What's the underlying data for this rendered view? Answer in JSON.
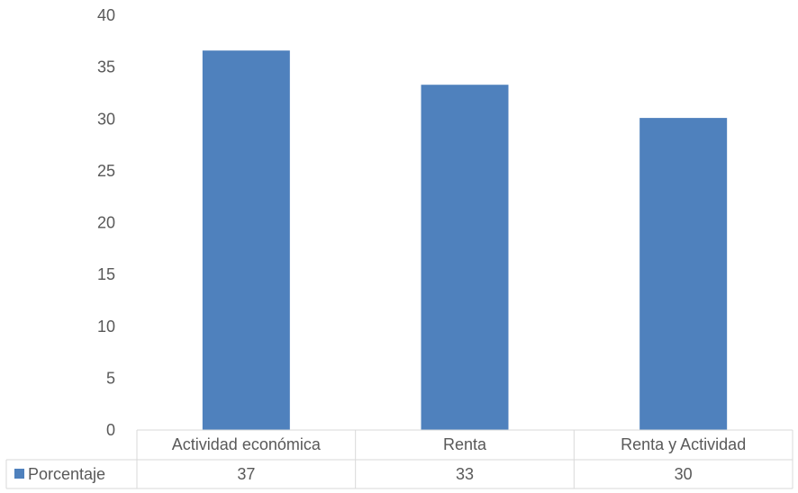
{
  "chart_data": {
    "type": "bar",
    "categories": [
      "Actividad económica",
      "Renta",
      "Renta y Actividad"
    ],
    "series": [
      {
        "name": "Porcentaje",
        "values": [
          36.6,
          33.3,
          30.1
        ],
        "table_values": [
          "37",
          "33",
          "30"
        ]
      }
    ],
    "ylim": [
      0,
      40
    ],
    "yticks": [
      "0",
      "5",
      "10",
      "15",
      "20",
      "25",
      "30",
      "35",
      "40"
    ],
    "grid": false,
    "legend": "data-table-left",
    "colors": {
      "bar": "#4f81bd",
      "table_border": "#d9d9d9",
      "text": "#595959"
    }
  }
}
